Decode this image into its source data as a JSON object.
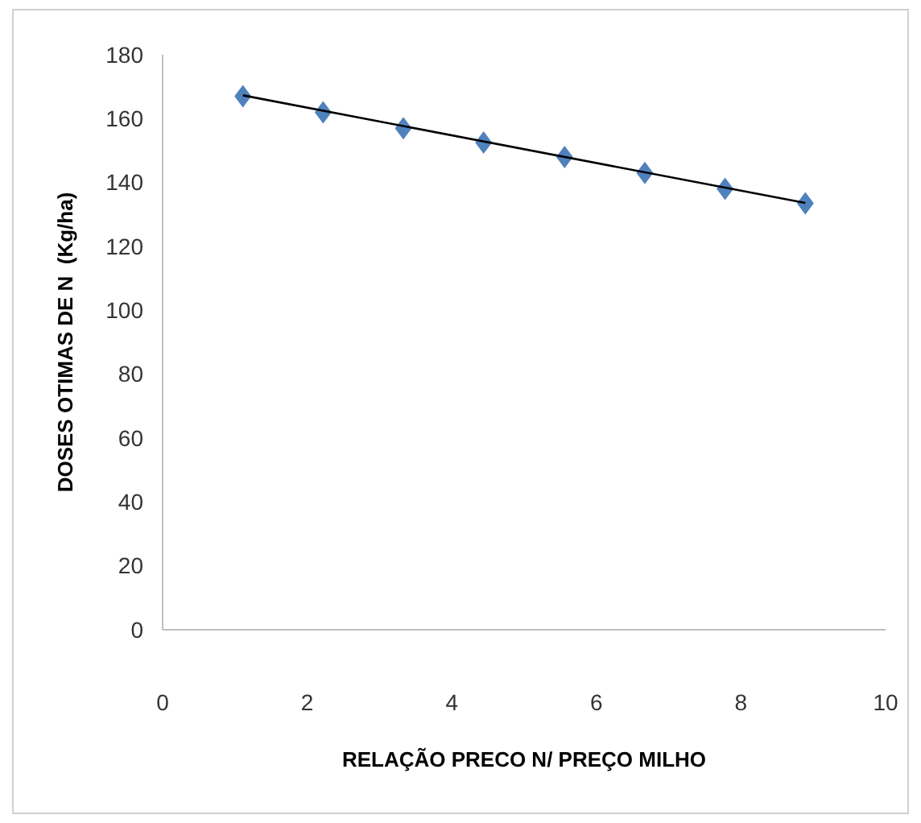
{
  "chart_data": {
    "type": "scatter",
    "xlabel": "RELAÇÃO PRECO N/ PREÇO MILHO",
    "ylabel": "DOSES OTIMAS DE N  (Kg/ha)",
    "xlim": [
      0,
      10
    ],
    "xticks": [
      0,
      2,
      4,
      6,
      8,
      10
    ],
    "ylim": [
      0,
      180
    ],
    "yticks": [
      0,
      20,
      40,
      60,
      80,
      100,
      120,
      140,
      160,
      180
    ],
    "grid": false,
    "series": [
      {
        "color": "#4f81bd",
        "marker": "diamond",
        "x": [
          1.11,
          2.22,
          3.33,
          4.44,
          5.56,
          6.67,
          7.78,
          8.89
        ],
        "values": [
          167,
          162,
          157,
          152.5,
          148,
          143,
          138,
          133.5
        ]
      },
      {
        "type": "line",
        "color": "#000000",
        "marker": "none",
        "line_style": "solid",
        "x": [
          1.11,
          8.89
        ],
        "values": [
          167.3,
          133.6
        ]
      }
    ]
  }
}
